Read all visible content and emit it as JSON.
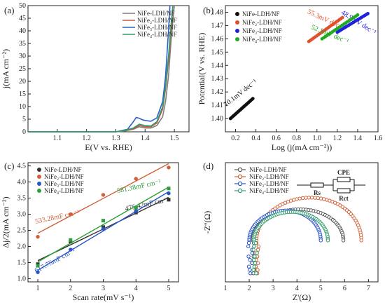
{
  "chart_data": [
    {
      "panel": "(a)",
      "type": "line",
      "xlabel": "E(V vs. RHE)",
      "ylabel": "j(mA cm⁻²)",
      "xlim": [
        1.0,
        1.55
      ],
      "ylim": [
        0,
        50
      ],
      "xticks": [
        1.1,
        1.2,
        1.3,
        1.4,
        1.5
      ],
      "yticks": [
        0,
        5,
        10,
        15,
        20,
        25,
        30,
        35,
        40,
        45,
        50
      ],
      "legend_position": "top-right",
      "series": [
        {
          "name": "NiFe-LDH/NF",
          "color": "#7f7f7f",
          "x": [
            1.0,
            1.3,
            1.33,
            1.36,
            1.38,
            1.4,
            1.42,
            1.44,
            1.46,
            1.47,
            1.48,
            1.49,
            1.5
          ],
          "y": [
            0,
            0,
            0.3,
            1.0,
            2.0,
            1.5,
            1.5,
            2.5,
            6,
            12,
            22,
            38,
            50
          ]
        },
        {
          "name": "NiFe₂-LDH/NF",
          "color": "#c8553d",
          "x": [
            1.0,
            1.3,
            1.33,
            1.36,
            1.38,
            1.4,
            1.42,
            1.44,
            1.46,
            1.47,
            1.48,
            1.49,
            1.495
          ],
          "y": [
            0,
            0,
            0.4,
            1.2,
            2.5,
            2.0,
            2.0,
            3.5,
            9,
            17,
            28,
            42,
            50
          ]
        },
        {
          "name": "NiFe₃-LDH/NF",
          "color": "#2d5fd0",
          "x": [
            1.0,
            1.3,
            1.34,
            1.36,
            1.37,
            1.38,
            1.39,
            1.4,
            1.42,
            1.44,
            1.46,
            1.47,
            1.48,
            1.485
          ],
          "y": [
            0,
            0,
            1.0,
            4.0,
            5.7,
            5.4,
            4.8,
            4.5,
            4.2,
            5.5,
            12,
            22,
            40,
            50
          ]
        },
        {
          "name": "NiFe₄-LDH/NF",
          "color": "#2e9e6a",
          "x": [
            1.0,
            1.3,
            1.33,
            1.36,
            1.38,
            1.4,
            1.42,
            1.44,
            1.46,
            1.47,
            1.48,
            1.49,
            1.495
          ],
          "y": [
            0,
            0,
            0.5,
            1.5,
            3.0,
            2.5,
            2.3,
            4.0,
            10,
            18,
            30,
            44,
            50
          ]
        }
      ]
    },
    {
      "panel": "(b)",
      "type": "scatter",
      "xlabel": "Log (j(mA cm⁻²))",
      "ylabel": "Potential(V vs. RHE)",
      "xlim": [
        0.1,
        1.6
      ],
      "ylim": [
        1.39,
        1.485
      ],
      "xticks": [
        0.2,
        0.4,
        0.6,
        0.8,
        1.0,
        1.2,
        1.4,
        1.6
      ],
      "yticks": [
        1.4,
        1.41,
        1.42,
        1.43,
        1.44,
        1.45,
        1.46,
        1.47,
        1.48
      ],
      "legend_position": "top-left",
      "series": [
        {
          "name": "NiFe-LDH/NF",
          "color": "#111111",
          "x_range": [
            0.15,
            0.37
          ],
          "y_range": [
            1.4,
            1.415
          ],
          "slope_label": "70.1mV dec⁻¹"
        },
        {
          "name": "NiFe₂-LDH/NF",
          "color": "#e0502e",
          "x_range": [
            0.92,
            1.25
          ],
          "y_range": [
            1.458,
            1.476
          ],
          "slope_label": "55.3mV dec⁻¹"
        },
        {
          "name": "NiFe₃-LDH/NF",
          "color": "#2020dd",
          "x_range": [
            1.2,
            1.5
          ],
          "y_range": [
            1.465,
            1.479
          ],
          "slope_label": "48.9mV dec⁻¹"
        },
        {
          "name": "NiFe₄-LDH/NF",
          "color": "#22aa22",
          "x_range": [
            1.05,
            1.4
          ],
          "y_range": [
            1.46,
            1.478
          ],
          "slope_label": "52.1mV dec⁻¹"
        }
      ]
    },
    {
      "panel": "(c)",
      "type": "scatter",
      "xlabel": "Scan rate(mV s⁻¹)",
      "ylabel": "Δj/2(mA cm⁻²)",
      "xlim": [
        0.7,
        5.3
      ],
      "ylim": [
        0.9,
        4.6
      ],
      "xticks": [
        1,
        2,
        3,
        4,
        5
      ],
      "yticks": [
        1.0,
        1.5,
        2.0,
        2.5,
        3.0,
        3.5,
        4.0,
        4.5
      ],
      "legend_position": "top-left",
      "series": [
        {
          "name": "NiFe-LDH/NF",
          "color": "#333333",
          "x": [
            1,
            2,
            3,
            4,
            5
          ],
          "y": [
            1.45,
            2.15,
            2.6,
            3.05,
            3.45
          ],
          "slope_label": "475.42mF cm⁻²"
        },
        {
          "name": "NiFe₂-LDH/NF",
          "color": "#d0603a",
          "x": [
            1,
            2,
            3,
            4,
            5
          ],
          "y": [
            2.3,
            3.0,
            3.6,
            4.1,
            4.45
          ],
          "slope_label": "533.28mF cm⁻²"
        },
        {
          "name": "NiFe₃-LDH/NF",
          "color": "#2855c8",
          "x": [
            1,
            2,
            3,
            4,
            5
          ],
          "y": [
            1.2,
            1.9,
            2.55,
            3.1,
            3.65
          ],
          "slope_label": "617.75mF cm⁻²"
        },
        {
          "name": "NiFe₄-LDH/NF",
          "color": "#2e9e3a",
          "x": [
            1,
            2,
            3,
            4,
            5
          ],
          "y": [
            1.4,
            2.2,
            2.8,
            3.2,
            3.8
          ],
          "slope_label": "581.38mF cm⁻²"
        }
      ]
    },
    {
      "panel": "(d)",
      "type": "scatter",
      "xlabel": "Z'(Ω)",
      "ylabel": "-Z''(Ω)",
      "xlim": [
        1,
        7.4
      ],
      "ylim": [
        -1.6,
        3.0
      ],
      "xticks": [
        1,
        2,
        3,
        4,
        5,
        6,
        7
      ],
      "legend_position": "top-left",
      "circuit_labels": [
        "CPE",
        "Rs",
        "Rct"
      ],
      "series": [
        {
          "name": "NiFe-LDH/NF",
          "color": "#555555",
          "Rs": 2.15,
          "Rct": 3.8,
          "height": 1.2
        },
        {
          "name": "NiFe₂-LDH/NF",
          "color": "#d0603a",
          "Rs": 2.3,
          "Rct": 4.4,
          "height": 1.65
        },
        {
          "name": "NiFe₃-LDH/NF",
          "color": "#2855c8",
          "Rs": 2.0,
          "Rct": 3.0,
          "height": 1.15
        },
        {
          "name": "NiFe₄-LDH/NF",
          "color": "#2e9e6a",
          "Rs": 2.2,
          "Rct": 3.1,
          "height": 1.1
        }
      ]
    }
  ]
}
